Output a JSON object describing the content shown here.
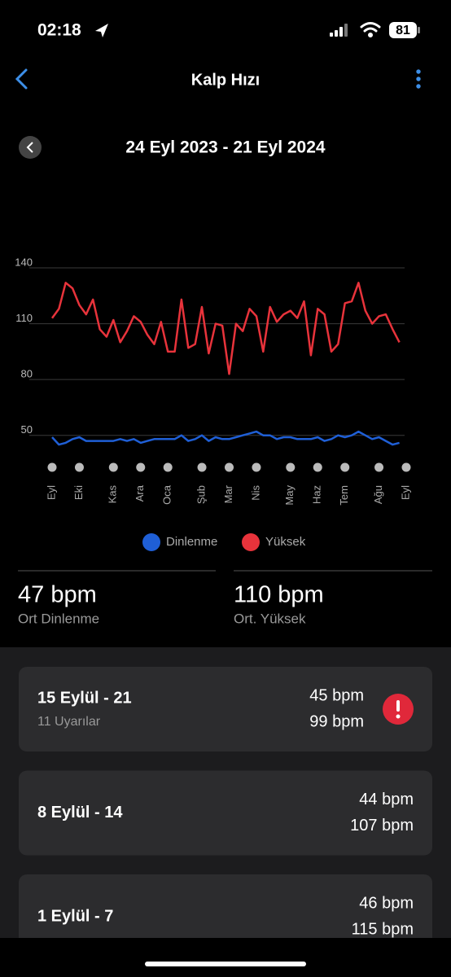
{
  "status": {
    "time": "02:18",
    "battery": "81"
  },
  "header": {
    "title": "Kalp Hızı"
  },
  "range": "24 Eyl 2023 - 21 Eyl 2024",
  "chart_data": {
    "type": "line",
    "categories": [
      "Eyl",
      null,
      null,
      null,
      "Eki",
      null,
      null,
      null,
      null,
      "Kas",
      null,
      null,
      null,
      "Ara",
      null,
      null,
      null,
      "Oca",
      null,
      null,
      null,
      null,
      "Şub",
      null,
      null,
      null,
      "Mar",
      null,
      null,
      null,
      "Nis",
      null,
      null,
      null,
      null,
      "May",
      null,
      null,
      null,
      "Haz",
      null,
      null,
      null,
      "Tem",
      null,
      null,
      null,
      null,
      "Ağu",
      null,
      null,
      null,
      "Eyl"
    ],
    "series": [
      {
        "name": "Dinlenme",
        "color": "#1f5fd6",
        "values": [
          49,
          45,
          46,
          48,
          49,
          47,
          47,
          47,
          47,
          47,
          48,
          47,
          48,
          46,
          47,
          48,
          48,
          48,
          48,
          50,
          47,
          48,
          50,
          47,
          49,
          48,
          48,
          49,
          50,
          51,
          52,
          50,
          50,
          48,
          49,
          49,
          48,
          48,
          48,
          49,
          47,
          48,
          50,
          49,
          50,
          52,
          50,
          48,
          49,
          47,
          45,
          46,
          null
        ]
      },
      {
        "name": "Yüksek",
        "color": "#e8333b",
        "values": [
          113,
          118,
          132,
          129,
          120,
          115,
          123,
          107,
          103,
          112,
          100,
          106,
          114,
          111,
          104,
          99,
          111,
          95,
          95,
          123,
          97,
          99,
          119,
          94,
          110,
          109,
          83,
          110,
          106,
          118,
          114,
          95,
          119,
          111,
          115,
          117,
          113,
          122,
          93,
          118,
          115,
          95,
          99,
          121,
          122,
          132,
          117,
          110,
          114,
          115,
          107,
          100,
          null
        ]
      }
    ],
    "ylim": [
      42,
      140
    ],
    "yticks": [
      50,
      80,
      110,
      140
    ],
    "grid": true
  },
  "stats": [
    {
      "value": "47 bpm",
      "label": "Ort Dinlenme"
    },
    {
      "value": "110 bpm",
      "label": "Ort. Yüksek"
    }
  ],
  "weeks": [
    {
      "title": "15 Eylül - 21",
      "subtitle": "11 Uyarılar",
      "values": [
        "45 bpm",
        "99 bpm"
      ],
      "alert": true
    },
    {
      "title": "8 Eylül - 14",
      "values": [
        "44 bpm",
        "107 bpm"
      ],
      "alert": false
    },
    {
      "title": "1 Eylül - 7",
      "values": [
        "46 bpm",
        "115 bpm"
      ],
      "alert": false
    }
  ]
}
